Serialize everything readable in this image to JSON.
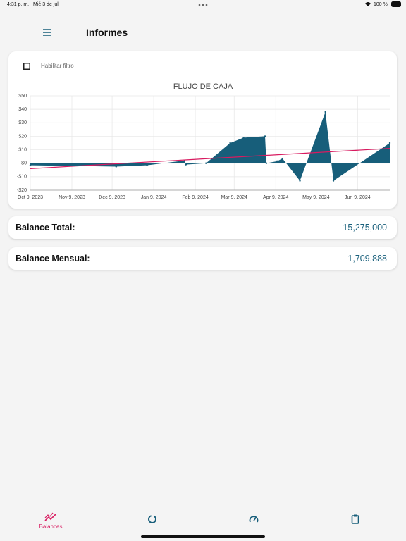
{
  "status_bar": {
    "time": "4:31 p. m.",
    "date": "Mié 3 de jul",
    "battery": "100 %"
  },
  "header": {
    "title": "Informes"
  },
  "filter": {
    "label": "Habilitar filtro"
  },
  "chart_data": {
    "type": "area",
    "title": "FLUJO DE CAJA",
    "series": [
      {
        "color": "#175e7a",
        "x": [
          "2023-10-09",
          "2023-12-12",
          "2024-01-04",
          "2024-02-01",
          "2024-02-02",
          "2024-02-17",
          "2024-03-06",
          "2024-03-16",
          "2024-04-01",
          "2024-04-02",
          "2024-04-10",
          "2024-04-14",
          "2024-04-27",
          "2024-05-16",
          "2024-05-22",
          "2024-07-03"
        ],
        "values": [
          -1.5,
          -2.5,
          -1.5,
          2,
          -1,
          0,
          15,
          19,
          20,
          0,
          1.5,
          3.5,
          -13,
          38,
          -13,
          15
        ]
      },
      {
        "color": "#d81b60",
        "x": [
          "2023-10-09",
          "2024-07-03"
        ],
        "values": [
          -4,
          11
        ]
      }
    ],
    "xlim": [
      "2023-10-09",
      "2024-07-03"
    ],
    "xticks": [
      {
        "value": "2023-10-09",
        "label": "Oct 9, 2023"
      },
      {
        "value": "2023-11-09",
        "label": "Nov 9, 2023"
      },
      {
        "value": "2023-12-09",
        "label": "Dec 9, 2023"
      },
      {
        "value": "2024-01-09",
        "label": "Jan 9, 2024"
      },
      {
        "value": "2024-02-09",
        "label": "Feb 9, 2024"
      },
      {
        "value": "2024-03-09",
        "label": "Mar 9, 2024"
      },
      {
        "value": "2024-04-09",
        "label": "Apr 9, 2024"
      },
      {
        "value": "2024-05-09",
        "label": "May 9, 2024"
      },
      {
        "value": "2024-06-09",
        "label": "Jun 9, 2024"
      }
    ],
    "ylim": [
      -20,
      50
    ],
    "yticks": [
      {
        "value": 50,
        "label": "$50"
      },
      {
        "value": 40,
        "label": "$40"
      },
      {
        "value": 30,
        "label": "$30"
      },
      {
        "value": 20,
        "label": "$20"
      },
      {
        "value": 10,
        "label": "$10"
      },
      {
        "value": 0,
        "label": "$0"
      },
      {
        "value": -10,
        "label": "-$10"
      },
      {
        "value": -20,
        "label": "-$20"
      }
    ],
    "grid": true
  },
  "balances": [
    {
      "label": "Balance Total:",
      "value": "15,275,000"
    },
    {
      "label": "Balance Mensual:",
      "value": "1,709,888"
    }
  ],
  "nav": {
    "active_label": "Balances"
  }
}
